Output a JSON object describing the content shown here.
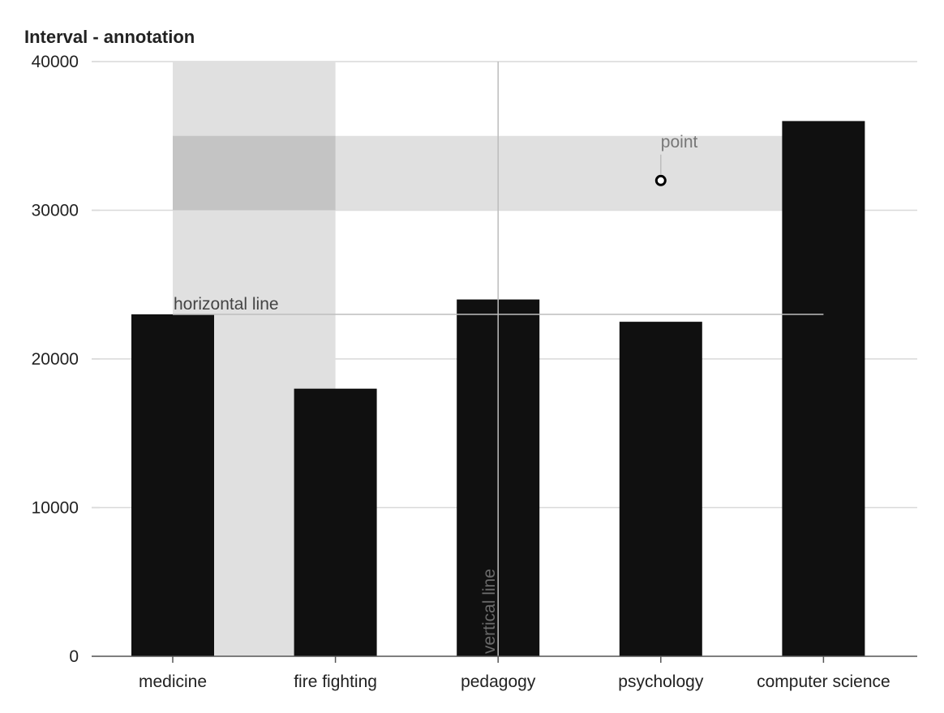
{
  "chart_data": {
    "type": "bar",
    "title": "Interval - annotation",
    "categories": [
      "medicine",
      "fire fighting",
      "pedagogy",
      "psychology",
      "computer science"
    ],
    "values": [
      23000,
      18000,
      24000,
      22500,
      36000
    ],
    "ylim": [
      0,
      40000
    ],
    "yticks": [
      0,
      10000,
      20000,
      30000,
      40000
    ],
    "grid": true,
    "colors": {
      "bar": "#0d0d0d",
      "band": "#e0e0e0",
      "band_overlap": "#c4c4c4",
      "line": "#bdbdbd",
      "grid": "#d9d9d9",
      "axis": "#555555"
    },
    "annotations": {
      "vertical_band": {
        "from": "medicine",
        "to": "fire fighting"
      },
      "horizontal_band": {
        "from": 30000,
        "to": 35000
      },
      "horizontal_line": {
        "y": 23000,
        "label": "horizontal line"
      },
      "vertical_line": {
        "x": "pedagogy",
        "label": "vertical line"
      },
      "point": {
        "x": "psychology",
        "y": 32000,
        "label": "point"
      }
    }
  }
}
